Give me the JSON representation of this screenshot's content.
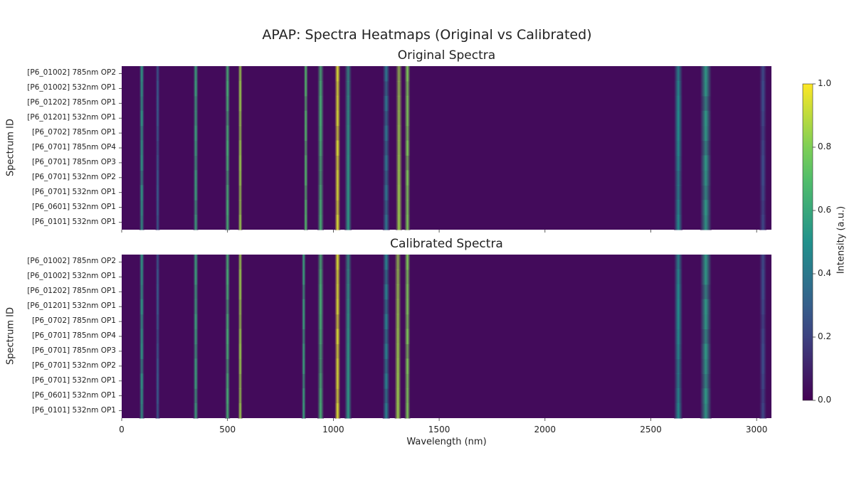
{
  "chart_data": {
    "type": "heatmap",
    "title": "APAP: Spectra Heatmaps (Original vs Calibrated)",
    "xlabel": "Wavelength (nm)",
    "ylabel": "Spectrum ID",
    "xlim": [
      0,
      3070
    ],
    "xticks": [
      "0",
      "500",
      "1000",
      "1500",
      "2000",
      "2500",
      "3000"
    ],
    "xtick_values": [
      0,
      500,
      1000,
      1500,
      2000,
      2500,
      3000
    ],
    "colorbar": {
      "label": "Intensity (a.u.)",
      "range": [
        0,
        1
      ],
      "ticks": [
        "0.0",
        "0.2",
        "0.4",
        "0.6",
        "0.8",
        "1.0"
      ],
      "colormap": "viridis"
    },
    "rows": [
      "[P6_01002] 785nm OP2",
      "[P6_01002] 532nm OP1",
      "[P6_01202] 785nm OP1",
      "[P6_01201] 532nm OP1",
      "[P6_0702] 785nm OP1",
      "[P6_0701] 785nm OP4",
      "[P6_0701] 785nm OP3",
      "[P6_0701] 532nm OP2",
      "[P6_0701] 532nm OP1",
      "[P6_0601] 532nm OP1",
      "[P6_0101] 532nm OP1"
    ],
    "panels": [
      {
        "title": "Original Spectra",
        "peaks": [
          {
            "x": 95,
            "intensity": 0.55,
            "width": 7
          },
          {
            "x": 170,
            "intensity": 0.3,
            "width": 6
          },
          {
            "x": 350,
            "intensity": 0.6,
            "width": 7
          },
          {
            "x": 500,
            "intensity": 0.65,
            "width": 7
          },
          {
            "x": 560,
            "intensity": 0.85,
            "width": 6
          },
          {
            "x": 870,
            "intensity": 0.7,
            "width": 6
          },
          {
            "x": 940,
            "intensity": 0.65,
            "width": 9
          },
          {
            "x": 1020,
            "intensity": 0.95,
            "width": 8
          },
          {
            "x": 1070,
            "intensity": 0.55,
            "width": 10
          },
          {
            "x": 1250,
            "intensity": 0.4,
            "width": 10
          },
          {
            "x": 1310,
            "intensity": 0.85,
            "width": 9
          },
          {
            "x": 1350,
            "intensity": 0.8,
            "width": 8
          },
          {
            "x": 2630,
            "intensity": 0.5,
            "width": 12
          },
          {
            "x": 2760,
            "intensity": 0.55,
            "width": 16
          },
          {
            "x": 3030,
            "intensity": 0.25,
            "width": 10
          }
        ]
      },
      {
        "title": "Calibrated Spectra",
        "peaks": [
          {
            "x": 95,
            "intensity": 0.55,
            "width": 7
          },
          {
            "x": 170,
            "intensity": 0.3,
            "width": 6
          },
          {
            "x": 350,
            "intensity": 0.6,
            "width": 7
          },
          {
            "x": 500,
            "intensity": 0.65,
            "width": 7
          },
          {
            "x": 560,
            "intensity": 0.85,
            "width": 6
          },
          {
            "x": 860,
            "intensity": 0.6,
            "width": 6
          },
          {
            "x": 940,
            "intensity": 0.65,
            "width": 9
          },
          {
            "x": 1020,
            "intensity": 0.95,
            "width": 8
          },
          {
            "x": 1070,
            "intensity": 0.55,
            "width": 10
          },
          {
            "x": 1250,
            "intensity": 0.45,
            "width": 10
          },
          {
            "x": 1305,
            "intensity": 0.85,
            "width": 9
          },
          {
            "x": 1350,
            "intensity": 0.8,
            "width": 8
          },
          {
            "x": 2630,
            "intensity": 0.5,
            "width": 12
          },
          {
            "x": 2760,
            "intensity": 0.55,
            "width": 16
          },
          {
            "x": 3030,
            "intensity": 0.25,
            "width": 10
          }
        ]
      }
    ]
  }
}
